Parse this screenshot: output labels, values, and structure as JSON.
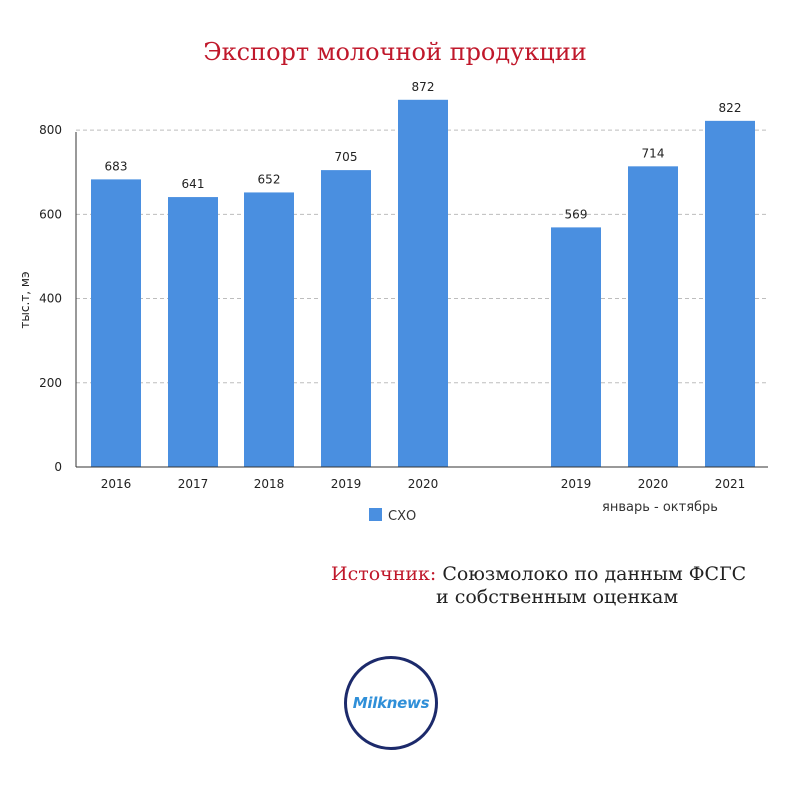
{
  "title": "Экспорт молочной продукции",
  "chart_data": {
    "type": "bar",
    "ylabel": "тыс.т, мэ",
    "ylim": [
      0,
      900
    ],
    "yticks": [
      0,
      200,
      400,
      600,
      800
    ],
    "grid": true,
    "legend": {
      "placement": "bottom-left",
      "entries": [
        "СХО"
      ]
    },
    "series": [
      {
        "name": "СХО",
        "color": "#4a8fe0"
      }
    ],
    "groups": [
      {
        "label": "",
        "categories": [
          "2016",
          "2017",
          "2018",
          "2019",
          "2020"
        ],
        "values": [
          683,
          641,
          652,
          705,
          872
        ]
      },
      {
        "label": "январь - октябрь",
        "categories": [
          "2019",
          "2020",
          "2021"
        ],
        "values": [
          569,
          714,
          822
        ]
      }
    ]
  },
  "source": {
    "label": "Источник:",
    "line1": "Союзмолоко по данным ФСГС",
    "line2": "и собственным оценкам"
  },
  "logo": {
    "text": "Milknews"
  }
}
